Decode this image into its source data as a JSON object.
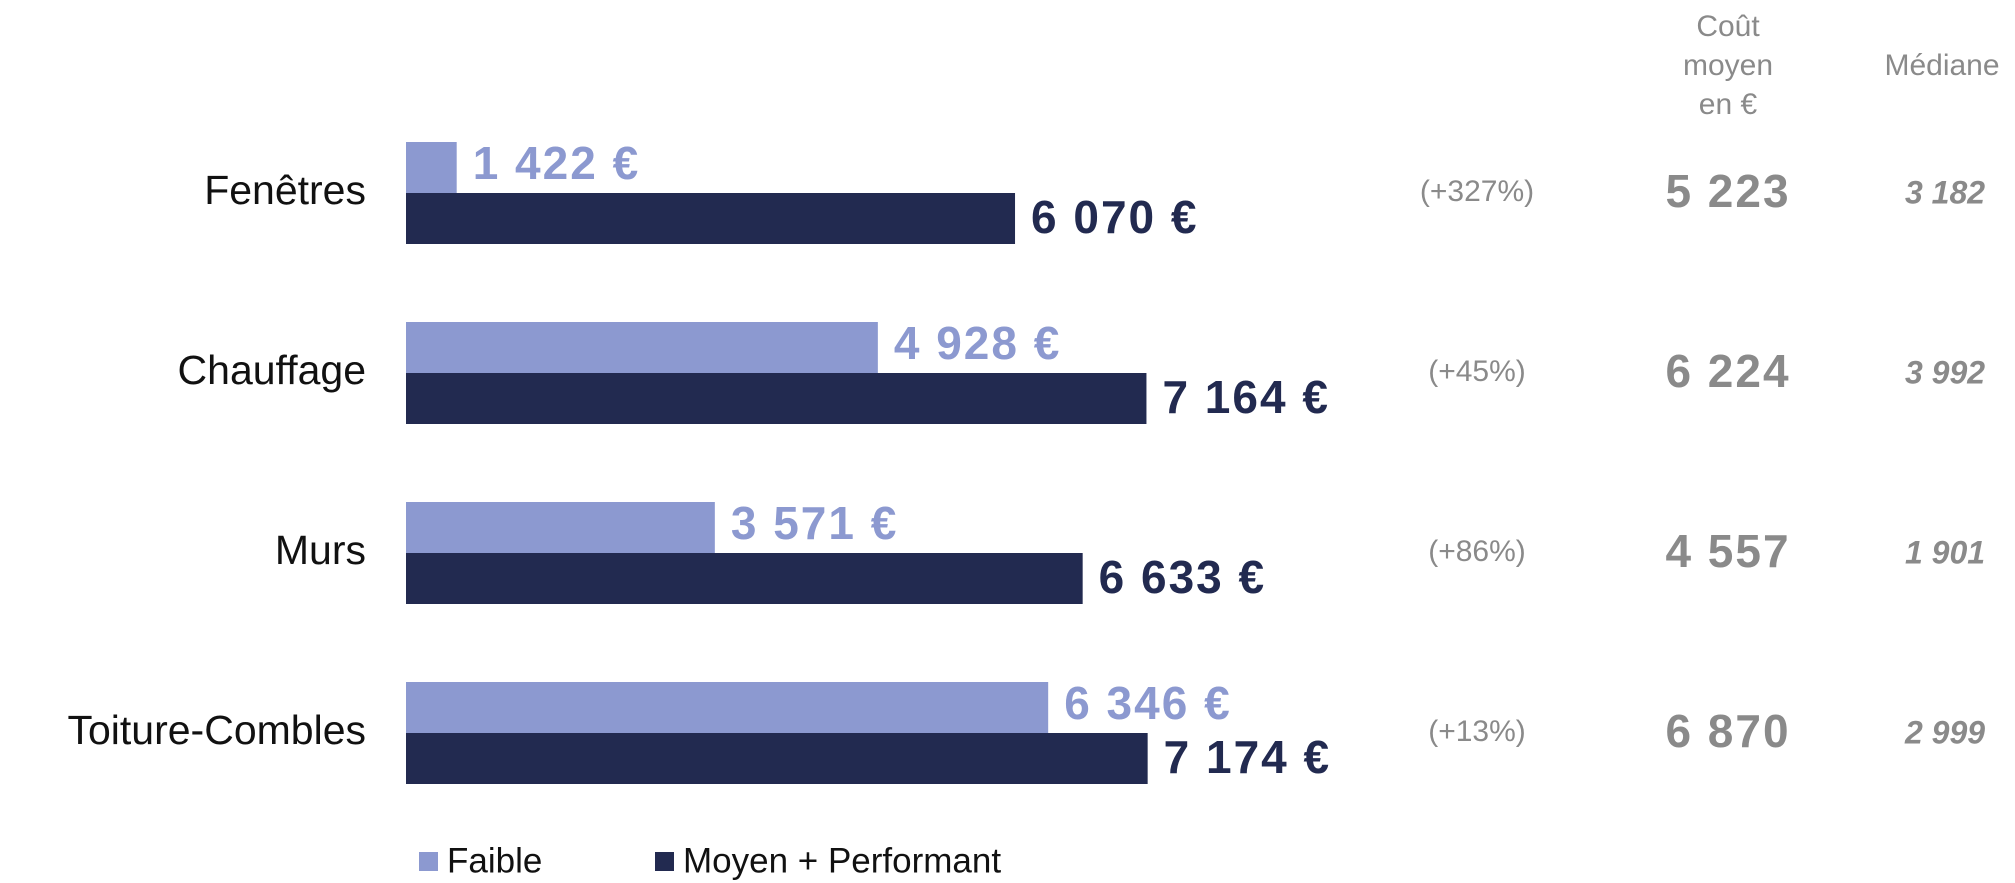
{
  "chart_data": {
    "type": "bar",
    "orientation": "horizontal",
    "categories": [
      "Fenêtres",
      "Chauffage",
      "Murs",
      "Toiture-Combles"
    ],
    "series": [
      {
        "name": "Faible",
        "color": "#8c99d0",
        "values": [
          1422,
          4928,
          3571,
          6346
        ],
        "value_labels": [
          "1 422 €",
          "4 928 €",
          "3 571 €",
          "6 346 €"
        ]
      },
      {
        "name": "Moyen + Performant",
        "color": "#222a50",
        "values": [
          6070,
          7164,
          6633,
          7174
        ],
        "value_labels": [
          "6 070 €",
          "7 164 €",
          "6 633 €",
          "7 174 €"
        ]
      }
    ],
    "xlim": [
      1000,
      9000
    ],
    "increase": {
      "values": [
        327,
        45,
        86,
        13
      ],
      "value_labels": [
        "(+327%)",
        "(+45%)",
        "(+86%)",
        "(+13%)"
      ]
    },
    "mean_cost": {
      "header": "Coût moyen en €",
      "values": [
        5223,
        6224,
        4557,
        6870
      ],
      "value_labels": [
        "5 223",
        "6 224",
        "4 557",
        "6 870"
      ]
    },
    "median": {
      "header": "Médiane",
      "values": [
        3182,
        3992,
        1901,
        2999
      ],
      "value_labels": [
        "3 182",
        "3 992",
        "1 901",
        "2 999"
      ]
    },
    "legend": "bottom-left"
  }
}
